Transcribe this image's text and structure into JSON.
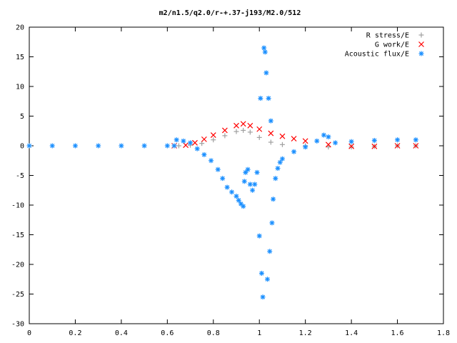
{
  "chart_data": {
    "type": "scatter",
    "title": "m2/n1.5/q2.0/r-+.37-j193/M2.0/512",
    "xlabel": "",
    "ylabel": "",
    "xlim": [
      0,
      1.8
    ],
    "ylim": [
      -30,
      20
    ],
    "xticks": [
      0,
      0.2,
      0.4,
      0.6,
      0.8,
      1,
      1.2,
      1.4,
      1.6,
      1.8
    ],
    "xtick_labels": [
      "0",
      "0.2",
      "0.4",
      "0.6",
      "0.8",
      "1",
      "1.2",
      "1.4",
      "1.6",
      "1.8"
    ],
    "yticks": [
      20,
      15,
      10,
      5,
      0,
      -5,
      -10,
      -15,
      -20,
      -25,
      -30
    ],
    "ytick_labels": [
      "20",
      "15",
      "10",
      "5",
      "0",
      "-5",
      "-10",
      "-15",
      "-20",
      "-25",
      "-30"
    ],
    "grid": false,
    "legend_position": "top-right",
    "series": [
      {
        "name": "R stress/E",
        "marker": "plus",
        "color": "#a0a0a0",
        "points": [
          [
            0.65,
            0.0
          ],
          [
            0.7,
            0.1
          ],
          [
            0.75,
            0.4
          ],
          [
            0.8,
            1.0
          ],
          [
            0.85,
            1.7
          ],
          [
            0.9,
            2.4
          ],
          [
            0.93,
            2.6
          ],
          [
            0.96,
            2.3
          ],
          [
            1.0,
            1.4
          ],
          [
            1.05,
            0.6
          ],
          [
            1.1,
            0.2
          ],
          [
            1.2,
            0.0
          ],
          [
            1.3,
            -0.2
          ],
          [
            1.4,
            -0.2
          ],
          [
            1.5,
            -0.1
          ],
          [
            1.6,
            0.0
          ],
          [
            1.68,
            0.0
          ]
        ]
      },
      {
        "name": "G work/E",
        "marker": "cross",
        "color": "#ff0000",
        "points": [
          [
            0.63,
            0.0
          ],
          [
            0.68,
            0.1
          ],
          [
            0.72,
            0.5
          ],
          [
            0.76,
            1.1
          ],
          [
            0.8,
            1.8
          ],
          [
            0.85,
            2.6
          ],
          [
            0.9,
            3.4
          ],
          [
            0.93,
            3.7
          ],
          [
            0.96,
            3.4
          ],
          [
            1.0,
            2.8
          ],
          [
            1.05,
            2.1
          ],
          [
            1.1,
            1.6
          ],
          [
            1.15,
            1.2
          ],
          [
            1.2,
            0.8
          ],
          [
            1.3,
            0.2
          ],
          [
            1.4,
            -0.1
          ],
          [
            1.5,
            -0.1
          ],
          [
            1.6,
            0.0
          ],
          [
            1.68,
            0.0
          ]
        ]
      },
      {
        "name": "Acoustic flux/E",
        "marker": "star",
        "color": "#1a8fff",
        "points": [
          [
            0.0,
            0.0
          ],
          [
            0.1,
            0.0
          ],
          [
            0.2,
            0.0
          ],
          [
            0.3,
            0.0
          ],
          [
            0.4,
            0.0
          ],
          [
            0.5,
            0.0
          ],
          [
            0.6,
            0.0
          ],
          [
            0.63,
            0.0
          ],
          [
            0.64,
            1.0
          ],
          [
            0.67,
            0.8
          ],
          [
            0.7,
            0.5
          ],
          [
            0.73,
            -0.5
          ],
          [
            0.76,
            -1.5
          ],
          [
            0.79,
            -2.5
          ],
          [
            0.82,
            -4.0
          ],
          [
            0.84,
            -5.5
          ],
          [
            0.86,
            -7.0
          ],
          [
            0.88,
            -7.8
          ],
          [
            0.9,
            -8.5
          ],
          [
            0.91,
            -9.2
          ],
          [
            0.92,
            -9.8
          ],
          [
            0.93,
            -10.2
          ],
          [
            0.935,
            -6.0
          ],
          [
            0.94,
            -4.5
          ],
          [
            0.95,
            -4.0
          ],
          [
            0.96,
            -6.5
          ],
          [
            0.97,
            -7.5
          ],
          [
            0.98,
            -6.5
          ],
          [
            0.99,
            -4.5
          ],
          [
            1.0,
            -15.2
          ],
          [
            1.005,
            8.0
          ],
          [
            1.01,
            -21.5
          ],
          [
            1.015,
            -25.5
          ],
          [
            1.02,
            16.5
          ],
          [
            1.025,
            15.8
          ],
          [
            1.03,
            12.3
          ],
          [
            1.035,
            -22.5
          ],
          [
            1.04,
            8.0
          ],
          [
            1.045,
            -17.8
          ],
          [
            1.05,
            4.2
          ],
          [
            1.055,
            -13.0
          ],
          [
            1.06,
            -9.0
          ],
          [
            1.07,
            -5.5
          ],
          [
            1.08,
            -3.8
          ],
          [
            1.09,
            -2.8
          ],
          [
            1.1,
            -2.2
          ],
          [
            1.15,
            -1.0
          ],
          [
            1.2,
            -0.2
          ],
          [
            1.25,
            0.8
          ],
          [
            1.28,
            1.8
          ],
          [
            1.3,
            1.5
          ],
          [
            1.33,
            0.5
          ],
          [
            1.4,
            0.7
          ],
          [
            1.5,
            0.9
          ],
          [
            1.6,
            1.0
          ],
          [
            1.68,
            1.0
          ]
        ]
      }
    ]
  }
}
